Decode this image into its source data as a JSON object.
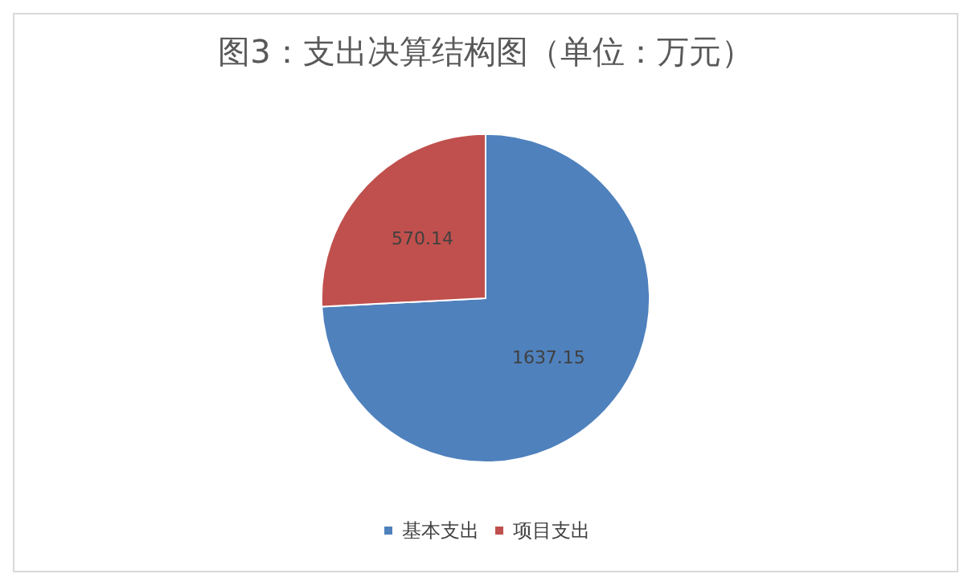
{
  "chart_data": {
    "type": "pie",
    "title": "图3：支出决算结构图（单位：万元）",
    "categories": [
      "基本支出",
      "项目支出"
    ],
    "values": [
      1637.15,
      570.14
    ],
    "colors": [
      "#4f81bd",
      "#c0504d"
    ],
    "data_labels": true,
    "legend": "bottom"
  }
}
